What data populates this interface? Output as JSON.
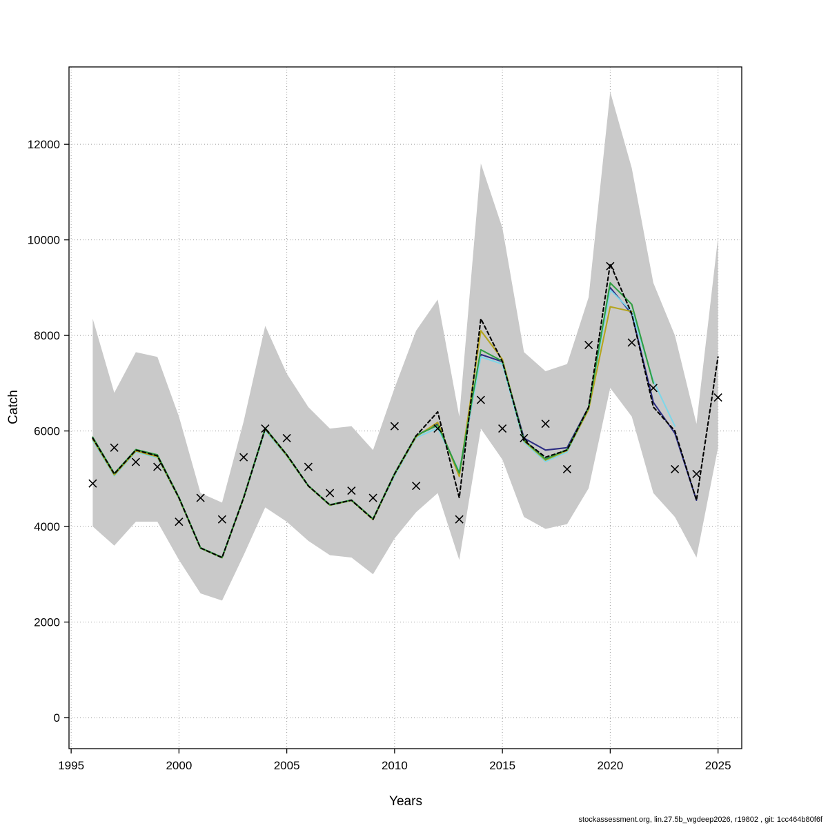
{
  "footer": {
    "text": "stockassessment.org, lin.27.5b_wgdeep2026, r19802 , git: 1cc464b80f6f"
  },
  "chart_data": {
    "type": "line",
    "title": "",
    "xlabel": "Years",
    "ylabel": "Catch",
    "grid": true,
    "legend": "none",
    "xticks": [
      1995,
      2000,
      2005,
      2010,
      2015,
      2020,
      2025
    ],
    "yticks": [
      0,
      2000,
      4000,
      6000,
      8000,
      10000,
      12000
    ],
    "xlim": [
      1994.9,
      2026.1
    ],
    "ylim": [
      -650,
      13620
    ],
    "x": [
      1996,
      1997,
      1998,
      1999,
      2000,
      2001,
      2002,
      2003,
      2004,
      2005,
      2006,
      2007,
      2008,
      2009,
      2010,
      2011,
      2012,
      2013,
      2014,
      2015,
      2016,
      2017,
      2018,
      2019,
      2020,
      2021,
      2022,
      2023,
      2024,
      2025
    ],
    "band": {
      "name": "confidence-band",
      "color": "#c9c9c9",
      "upper": [
        8350,
        6800,
        7650,
        7550,
        6300,
        4700,
        4500,
        6200,
        8200,
        7200,
        6500,
        6050,
        6100,
        5600,
        6900,
        8100,
        8750,
        6300,
        11600,
        10250,
        7650,
        7250,
        7400,
        8800,
        13100,
        11500,
        9100,
        8000,
        6150,
        10050
      ],
      "lower": [
        4000,
        3600,
        4100,
        4100,
        3300,
        2600,
        2450,
        3400,
        4400,
        4100,
        3700,
        3400,
        3350,
        3000,
        3750,
        4300,
        4700,
        3300,
        6050,
        5400,
        4200,
        3950,
        4050,
        4800,
        6900,
        6300,
        4700,
        4200,
        3350,
        5650
      ]
    },
    "observed": {
      "name": "observed-catch",
      "marker": "x",
      "color": "#000000",
      "values": [
        4900,
        5650,
        5350,
        5250,
        4100,
        4600,
        4150,
        5450,
        6050,
        5850,
        5250,
        4700,
        4750,
        4600,
        6100,
        4850,
        6050,
        4150,
        6650,
        6050,
        5850,
        6150,
        5200,
        7800,
        9450,
        7850,
        6900,
        5200,
        5100,
        6700
      ]
    },
    "series": [
      {
        "name": "run-blue",
        "color": "#2d2e83",
        "dash": "",
        "values": [
          5850,
          5100,
          5600,
          5480,
          4600,
          3550,
          3350,
          4600,
          6050,
          5500,
          4850,
          4450,
          4550,
          4150,
          5100,
          5900,
          6150,
          5100,
          7600,
          7450,
          5850,
          5600,
          5650,
          6500,
          9000,
          8450,
          6600,
          5950,
          4550,
          null
        ]
      },
      {
        "name": "run-cyan",
        "color": "#7fd6e8",
        "dash": "",
        "values": [
          5800,
          5060,
          5560,
          5440,
          4580,
          3540,
          3340,
          4590,
          6010,
          5470,
          4840,
          4440,
          4540,
          4150,
          5060,
          5860,
          6060,
          5150,
          7550,
          7400,
          5760,
          5360,
          5560,
          6460,
          8950,
          8500,
          7050,
          6100,
          null,
          null
        ]
      },
      {
        "name": "run-olive",
        "color": "#b5a51f",
        "dash": "",
        "values": [
          5830,
          5080,
          5580,
          5460,
          4590,
          3545,
          3345,
          4595,
          6040,
          5485,
          4845,
          4445,
          4545,
          4145,
          5090,
          5880,
          6180,
          5050,
          8100,
          7500,
          5790,
          5390,
          5590,
          6450,
          8600,
          8500,
          null,
          null,
          null,
          null
        ]
      },
      {
        "name": "run-green",
        "color": "#2f9e41",
        "dash": "",
        "values": [
          5870,
          5110,
          5610,
          5500,
          4610,
          3555,
          3355,
          4610,
          6060,
          5505,
          4855,
          4455,
          4555,
          4160,
          5110,
          5905,
          6120,
          5120,
          7700,
          7460,
          5810,
          5410,
          5610,
          6490,
          9100,
          8650,
          7000,
          null,
          null,
          null
        ]
      },
      {
        "name": "assessment-fit",
        "color": "#000000",
        "dash": "5,4",
        "values": [
          5850,
          5100,
          5600,
          5480,
          4600,
          3550,
          3350,
          4600,
          6050,
          5500,
          4850,
          4450,
          4550,
          4150,
          5100,
          5900,
          6400,
          4600,
          8350,
          7450,
          5800,
          5450,
          5600,
          6500,
          9500,
          8450,
          6500,
          6000,
          4550,
          7550
        ]
      }
    ]
  }
}
